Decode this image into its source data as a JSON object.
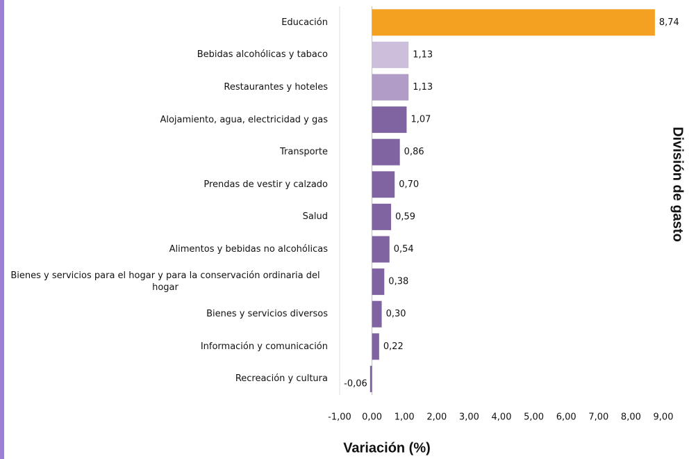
{
  "chart_data": {
    "type": "barh",
    "xlabel": "Variación (%)",
    "ylabel": "División de gasto",
    "categories": [
      "Educación",
      "Bebidas alcohólicas y tabaco",
      "Restaurantes y hoteles",
      "Alojamiento, agua, electricidad y gas",
      "Transporte",
      "Prendas de vestir y calzado",
      "Salud",
      "Alimentos y bebidas no alcohólicas",
      "Bienes y servicios para el hogar y para la conservación ordinaria del hogar",
      "Bienes y servicios diversos",
      "Información y comunicación",
      "Recreación y cultura"
    ],
    "values": [
      8.74,
      1.13,
      1.13,
      1.07,
      0.86,
      0.7,
      0.59,
      0.54,
      0.38,
      0.3,
      0.22,
      -0.06
    ],
    "value_labels": [
      "8,74",
      "1,13",
      "1,13",
      "1,07",
      "0,86",
      "0,70",
      "0,59",
      "0,54",
      "0,38",
      "0,30",
      "0,22",
      "-0,06"
    ],
    "colors": [
      "#f4a020",
      "#cbbfdc",
      "#b09cc6",
      "#8064a2",
      "#8064a2",
      "#8064a2",
      "#8064a2",
      "#8064a2",
      "#8064a2",
      "#8064a2",
      "#8064a2",
      "#8064a2"
    ],
    "xlim": [
      -1,
      9
    ],
    "xticks": [
      {
        "value": -1,
        "label": "-1,00"
      },
      {
        "value": 0,
        "label": "0,00"
      },
      {
        "value": 1,
        "label": "1,00"
      },
      {
        "value": 2,
        "label": "2,00"
      },
      {
        "value": 3,
        "label": "3,00"
      },
      {
        "value": 4,
        "label": "4,00"
      },
      {
        "value": 5,
        "label": "5,00"
      },
      {
        "value": 6,
        "label": "6,00"
      },
      {
        "value": 7,
        "label": "7,00"
      },
      {
        "value": 8,
        "label": "8,00"
      },
      {
        "value": 9,
        "label": "9,00"
      }
    ]
  }
}
